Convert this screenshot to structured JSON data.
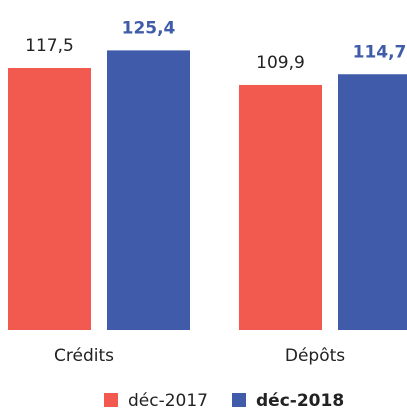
{
  "chart_data": {
    "type": "bar",
    "categories": [
      "Crédits",
      "Dépôts"
    ],
    "series": [
      {
        "name": "déc-2017",
        "color": "#f25a50",
        "values": [
          117.5,
          109.9
        ],
        "value_labels": [
          "117,5",
          "109,9"
        ]
      },
      {
        "name": "déc-2018",
        "color": "#3f5ba9",
        "values": [
          125.4,
          114.7
        ],
        "value_labels": [
          "125,4",
          "114,7"
        ]
      }
    ],
    "ylim": [
      0,
      148
    ],
    "legend": "bottom"
  }
}
